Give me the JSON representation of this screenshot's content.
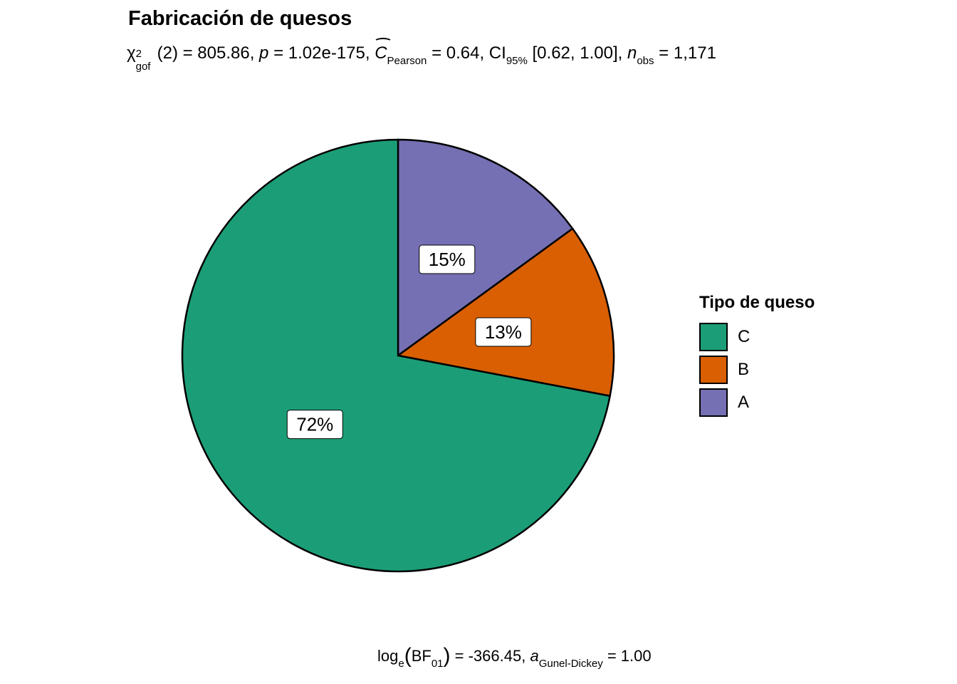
{
  "chart_data": {
    "type": "pie",
    "title": "Fabricación de quesos",
    "subtitle": {
      "chi_symbol": "χ",
      "chi_sub": "gof",
      "chi_sup": "2",
      "df_text": "(2) = 805.86, ",
      "p_symbol": "p",
      "p_text": " = 1.02e-175, ",
      "c_symbol": "C",
      "c_sub": "Pearson",
      "c_text": " = 0.64, CI",
      "ci_sub": "95%",
      "ci_text": " [0.62, 1.00], ",
      "n_symbol": "n",
      "n_sub": "obs",
      "n_text": " = 1,171"
    },
    "caption": {
      "log_text": "log",
      "log_sub": "e",
      "bf_text": "BF",
      "bf_sub": "01",
      "value_text": " = -366.45, ",
      "a_symbol": "a",
      "a_sub": "Gunel-Dickey",
      "a_text": " = 1.00"
    },
    "legend_title": "Tipo de queso",
    "legend_placement": "right",
    "slices": [
      {
        "category": "C",
        "percent": 72,
        "label": "72%",
        "color": "#1B9E77"
      },
      {
        "category": "B",
        "percent": 13,
        "label": "13%",
        "color": "#D95F02"
      },
      {
        "category": "A",
        "percent": 15,
        "label": "15%",
        "color": "#7570B3"
      }
    ],
    "draw_order": [
      "A",
      "B",
      "C"
    ],
    "total_n": 1171
  }
}
